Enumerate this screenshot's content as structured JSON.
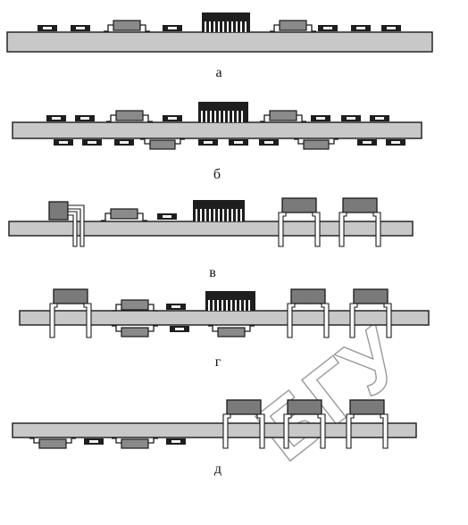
{
  "panels": [
    {
      "id": "a",
      "label": "а"
    },
    {
      "id": "b",
      "label": "б"
    },
    {
      "id": "v",
      "label": "в"
    },
    {
      "id": "g",
      "label": "г"
    },
    {
      "id": "d",
      "label": "д"
    }
  ],
  "watermark": {
    "text": "БГУ",
    "color": "#9a9a9a"
  },
  "colors": {
    "board": "#c8c8c8",
    "component_dark": "#1e1e1e",
    "component_gray": "#8a8a8a",
    "outline": "#1a1a1a"
  }
}
